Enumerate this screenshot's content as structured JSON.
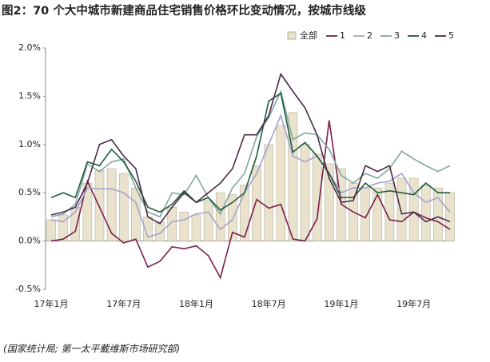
{
  "chart_data": {
    "type": "bar-line",
    "title": "图2：70 个大中城市新建商品住宅销售价格环比变动情况，按城市线级",
    "source": "(国家统计局; 第一太平戴维斯市场研究部)",
    "categories": [
      "17年1月",
      null,
      null,
      null,
      null,
      null,
      "17年7月",
      null,
      null,
      null,
      null,
      null,
      "18年1月",
      null,
      null,
      null,
      null,
      null,
      "18年7月",
      null,
      null,
      null,
      null,
      null,
      "19年1月",
      null,
      null,
      null,
      null,
      null,
      "19年7月",
      null,
      null,
      null
    ],
    "ylim": [
      -0.5,
      2.0
    ],
    "yticks": [
      {
        "value": -0.5,
        "label": "-0.5%"
      },
      {
        "value": 0,
        "label": "0.0%"
      },
      {
        "value": 0.5,
        "label": "0.5%"
      },
      {
        "value": 1,
        "label": "1.0%"
      },
      {
        "value": 1.5,
        "label": "1.5%"
      },
      {
        "value": 2,
        "label": "2.0%"
      }
    ],
    "series": [
      {
        "name": "全部",
        "kind": "bar",
        "color": "#e9e2cd",
        "values": [
          0.22,
          0.27,
          0.35,
          0.6,
          0.73,
          0.75,
          0.7,
          0.55,
          0.25,
          0.2,
          0.35,
          0.3,
          0.27,
          0.42,
          0.5,
          0.48,
          0.58,
          0.78,
          1.0,
          1.2,
          1.33,
          1.0,
          0.9,
          0.8,
          0.75,
          0.6,
          0.55,
          0.55,
          0.6,
          0.65,
          0.65,
          0.58,
          0.55,
          0.5
        ]
      },
      {
        "name": "1",
        "kind": "line",
        "color": "#7b1e4b",
        "values": [
          0.0,
          0.02,
          0.1,
          0.62,
          0.35,
          0.08,
          -0.02,
          0.02,
          -0.27,
          -0.21,
          -0.06,
          -0.08,
          -0.05,
          -0.15,
          -0.38,
          0.09,
          0.04,
          0.43,
          0.34,
          0.38,
          0.02,
          0.0,
          0.23,
          1.25,
          0.38,
          0.3,
          0.24,
          0.48,
          0.22,
          0.2,
          0.3,
          0.24,
          0.2,
          0.12
        ]
      },
      {
        "name": "2",
        "kind": "line",
        "color": "#a3a3cc",
        "values": [
          0.22,
          0.2,
          0.3,
          0.55,
          0.54,
          0.54,
          0.5,
          0.4,
          0.04,
          0.08,
          0.2,
          0.22,
          0.28,
          0.3,
          0.12,
          0.22,
          0.5,
          0.7,
          1.0,
          1.3,
          0.88,
          0.82,
          0.88,
          0.7,
          0.5,
          0.55,
          0.55,
          0.6,
          0.62,
          0.7,
          0.5,
          0.4,
          0.45,
          0.3
        ]
      },
      {
        "name": "3",
        "kind": "line",
        "color": "#80a6a2",
        "values": [
          0.25,
          0.28,
          0.38,
          0.8,
          0.72,
          0.82,
          0.85,
          0.55,
          0.3,
          0.25,
          0.5,
          0.48,
          0.68,
          0.45,
          0.28,
          0.55,
          0.7,
          1.08,
          1.28,
          1.55,
          1.05,
          1.12,
          1.1,
          0.95,
          0.68,
          0.6,
          0.7,
          0.65,
          0.75,
          0.93,
          0.85,
          0.78,
          0.72,
          0.78
        ]
      },
      {
        "name": "4",
        "kind": "line",
        "color": "#1f5b3a",
        "values": [
          0.45,
          0.5,
          0.45,
          0.82,
          0.78,
          0.95,
          0.82,
          0.62,
          0.35,
          0.3,
          0.38,
          0.52,
          0.4,
          0.45,
          0.32,
          0.4,
          0.5,
          0.88,
          1.45,
          1.53,
          0.92,
          1.02,
          0.88,
          0.7,
          0.45,
          0.45,
          0.6,
          0.5,
          0.52,
          0.5,
          0.48,
          0.6,
          0.5,
          0.5
        ]
      },
      {
        "name": "5",
        "kind": "line",
        "color": "#4a2a48",
        "values": [
          0.27,
          0.3,
          0.35,
          0.6,
          1.0,
          1.05,
          0.88,
          0.75,
          0.25,
          0.18,
          0.35,
          0.5,
          0.4,
          0.5,
          0.6,
          0.75,
          1.1,
          1.1,
          1.3,
          1.73,
          1.55,
          1.38,
          1.1,
          0.65,
          0.4,
          0.42,
          0.78,
          0.72,
          0.78,
          0.28,
          0.3,
          0.2,
          0.25,
          0.2
        ]
      }
    ]
  }
}
